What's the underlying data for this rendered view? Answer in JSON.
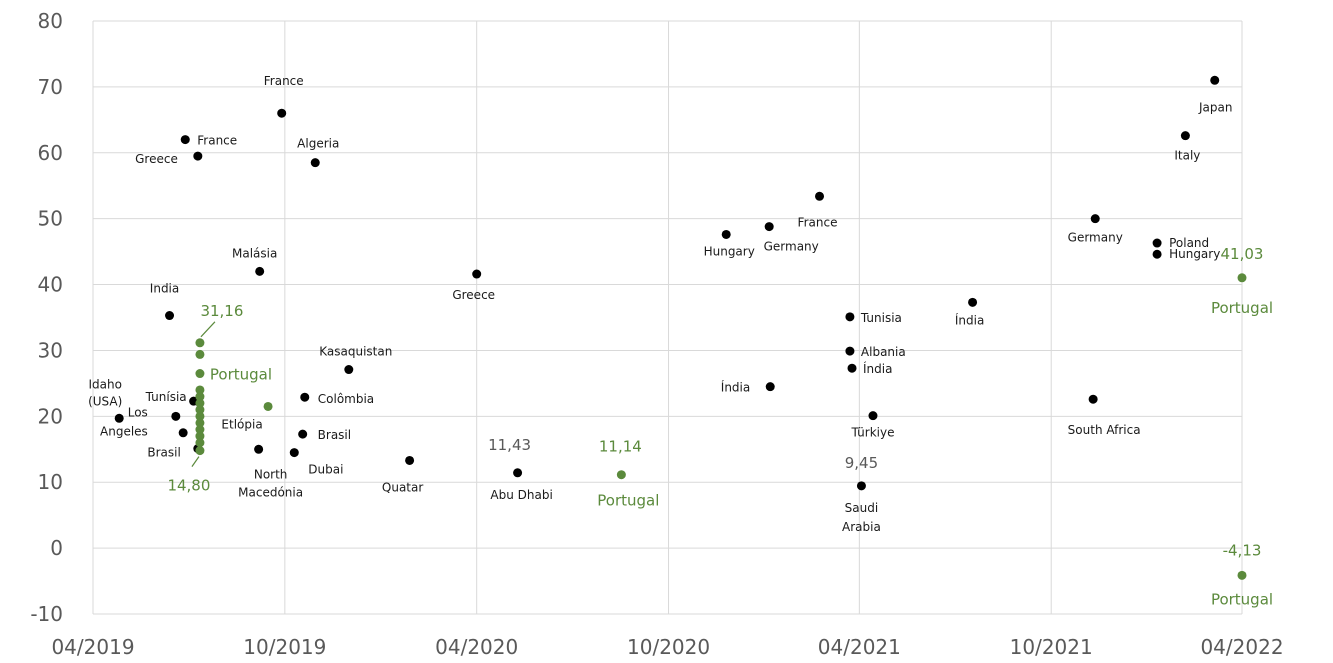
{
  "chart_data": {
    "type": "scatter",
    "title": "",
    "xlabel": "",
    "ylabel": "",
    "x_ticks": [
      "04/2019",
      "10/2019",
      "04/2020",
      "10/2020",
      "04/2021",
      "10/2021",
      "04/2022"
    ],
    "xlim": [
      "2019-04-01",
      "2022-04-01"
    ],
    "ylim": [
      -10,
      80
    ],
    "y_ticks": [
      -10,
      0,
      10,
      20,
      30,
      40,
      50,
      60,
      70,
      80
    ],
    "grid": true,
    "legend": "none",
    "colors": {
      "highlight": "#5b8a3c",
      "point": "#000000",
      "grid": "#d9d9d9",
      "axis_text": "#595959"
    },
    "points": [
      {
        "x": "2019-04-26",
        "y": 19.7,
        "label": "Idaho (USA)",
        "highlight": false
      },
      {
        "x": "2019-06-13",
        "y": 35.3,
        "label": "India",
        "highlight": false
      },
      {
        "x": "2019-06-19",
        "y": 20.0,
        "label": "Los Angeles",
        "highlight": false
      },
      {
        "x": "2019-06-26",
        "y": 17.5,
        "label": "",
        "highlight": false
      },
      {
        "x": "2019-06-28",
        "y": 62.0,
        "label": "France",
        "highlight": false
      },
      {
        "x": "2019-07-10",
        "y": 59.5,
        "label": "Greece",
        "highlight": false
      },
      {
        "x": "2019-07-06",
        "y": 22.3,
        "label": "Tunísia",
        "highlight": false
      },
      {
        "x": "2019-07-10",
        "y": 15.1,
        "label": "Brasil",
        "highlight": false
      },
      {
        "x": "2019-07-12",
        "y": 31.16,
        "label": "31,16",
        "highlight": true
      },
      {
        "x": "2019-07-12",
        "y": 29.4,
        "label": "",
        "highlight": true
      },
      {
        "x": "2019-07-12",
        "y": 26.5,
        "label": "Portugal",
        "highlight": true
      },
      {
        "x": "2019-07-12",
        "y": 24.0,
        "label": "",
        "highlight": true
      },
      {
        "x": "2019-07-12",
        "y": 23.0,
        "label": "",
        "highlight": true
      },
      {
        "x": "2019-07-12",
        "y": 22.0,
        "label": "",
        "highlight": true
      },
      {
        "x": "2019-07-12",
        "y": 21.0,
        "label": "",
        "highlight": true
      },
      {
        "x": "2019-07-12",
        "y": 20.0,
        "label": "",
        "highlight": true
      },
      {
        "x": "2019-07-12",
        "y": 19.0,
        "label": "",
        "highlight": true
      },
      {
        "x": "2019-07-12",
        "y": 18.0,
        "label": "",
        "highlight": true
      },
      {
        "x": "2019-07-12",
        "y": 17.0,
        "label": "",
        "highlight": true
      },
      {
        "x": "2019-07-12",
        "y": 16.0,
        "label": "",
        "highlight": true
      },
      {
        "x": "2019-07-12",
        "y": 14.8,
        "label": "14,80",
        "highlight": true
      },
      {
        "x": "2019-09-07",
        "y": 42.0,
        "label": "Malásia",
        "highlight": false
      },
      {
        "x": "2019-09-06",
        "y": 15.0,
        "label": "North Macedónia",
        "highlight": false
      },
      {
        "x": "2019-09-15",
        "y": 21.5,
        "label": "Etlópia",
        "highlight": true
      },
      {
        "x": "2019-09-28",
        "y": 66.0,
        "label": "France",
        "highlight": false
      },
      {
        "x": "2019-10-10",
        "y": 14.5,
        "label": "Dubai",
        "highlight": false
      },
      {
        "x": "2019-10-18",
        "y": 17.3,
        "label": "Brasil",
        "highlight": false
      },
      {
        "x": "2019-10-20",
        "y": 22.9,
        "label": "Colômbia",
        "highlight": false
      },
      {
        "x": "2019-10-30",
        "y": 58.5,
        "label": "Algeria",
        "highlight": false
      },
      {
        "x": "2019-12-01",
        "y": 27.1,
        "label": "Kasaquistan",
        "highlight": false
      },
      {
        "x": "2020-01-28",
        "y": 13.3,
        "label": "Quatar",
        "highlight": false
      },
      {
        "x": "2020-04-01",
        "y": 41.6,
        "label": "Greece",
        "highlight": false
      },
      {
        "x": "2020-05-10",
        "y": 11.43,
        "label": "11,43",
        "highlight": false
      },
      {
        "x": "2020-08-17",
        "y": 11.14,
        "label": "11,14",
        "highlight": true
      },
      {
        "x": "2020-11-25",
        "y": 47.6,
        "label": "Hungary",
        "highlight": false
      },
      {
        "x": "2021-01-05",
        "y": 48.8,
        "label": "Germany",
        "highlight": false
      },
      {
        "x": "2021-01-06",
        "y": 24.5,
        "label": "Índia",
        "highlight": false
      },
      {
        "x": "2021-02-22",
        "y": 53.4,
        "label": "France",
        "highlight": false
      },
      {
        "x": "2021-03-23",
        "y": 35.1,
        "label": "Tunisia",
        "highlight": false
      },
      {
        "x": "2021-03-23",
        "y": 29.9,
        "label": "Albania",
        "highlight": false
      },
      {
        "x": "2021-03-25",
        "y": 27.3,
        "label": "Índia",
        "highlight": false
      },
      {
        "x": "2021-04-03",
        "y": 9.45,
        "label": "9,45",
        "highlight": false
      },
      {
        "x": "2021-04-14",
        "y": 20.1,
        "label": "Türkiye",
        "highlight": false
      },
      {
        "x": "2021-07-18",
        "y": 37.3,
        "label": "Índia",
        "highlight": false
      },
      {
        "x": "2021-11-10",
        "y": 22.6,
        "label": "South Africa",
        "highlight": false
      },
      {
        "x": "2021-11-12",
        "y": 50.0,
        "label": "Germany",
        "highlight": false
      },
      {
        "x": "2022-01-10",
        "y": 46.3,
        "label": "Poland",
        "highlight": false
      },
      {
        "x": "2022-01-10",
        "y": 44.6,
        "label": "Hungary",
        "highlight": false
      },
      {
        "x": "2022-02-06",
        "y": 62.6,
        "label": "Italy",
        "highlight": false
      },
      {
        "x": "2022-03-06",
        "y": 71.0,
        "label": "Japan",
        "highlight": false
      },
      {
        "x": "2022-04-01",
        "y": 41.03,
        "label": "41,03",
        "highlight": true
      },
      {
        "x": "2022-04-01",
        "y": -4.13,
        "label": "-4,13",
        "highlight": true
      }
    ],
    "annotations": [
      {
        "text": "Abu Dhabi",
        "x": "2020-05-10",
        "y": 11.43
      },
      {
        "text": "Portugal",
        "x": "2020-08-17",
        "y": 11.14
      },
      {
        "text": "Saudi Arabia",
        "x": "2021-04-03",
        "y": 9.45
      },
      {
        "text": "Portugal",
        "x": "2022-04-01",
        "y": 41.03
      },
      {
        "text": "Portugal",
        "x": "2022-04-01",
        "y": -4.13
      }
    ]
  }
}
